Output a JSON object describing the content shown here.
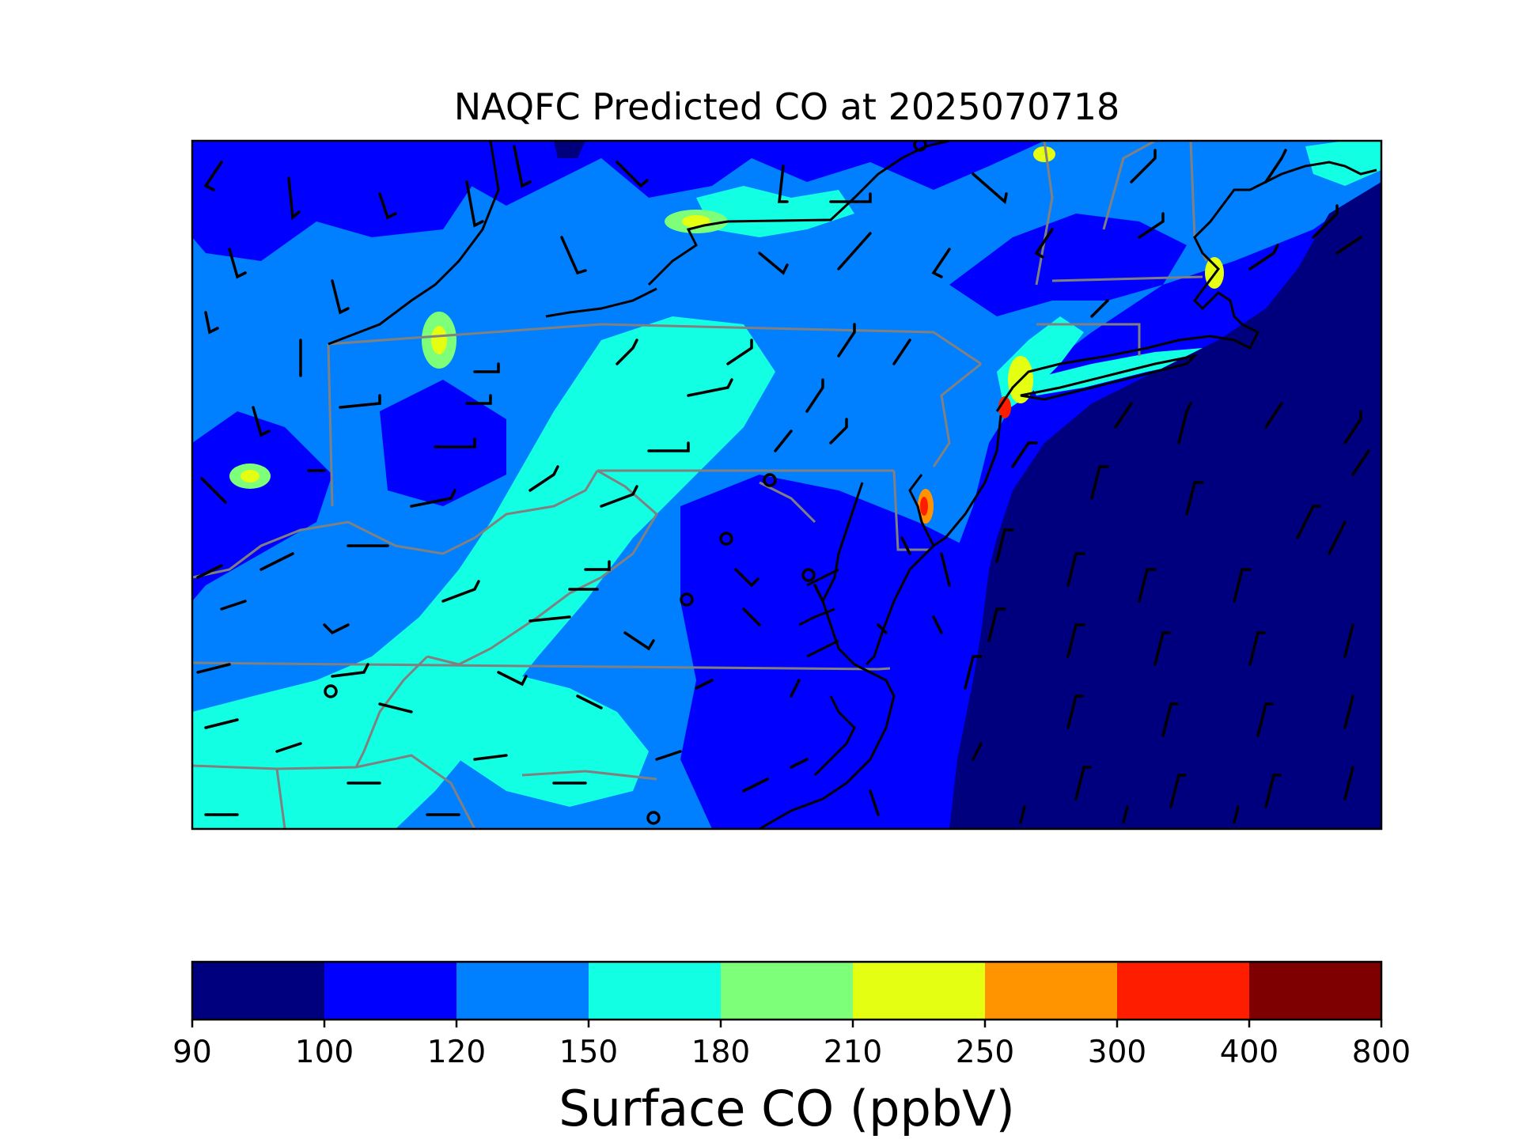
{
  "title": "NAQFC Predicted CO at 2025070718",
  "colorbar": {
    "label": "Surface CO (ppbV)",
    "boundaries": [
      90,
      100,
      120,
      150,
      180,
      210,
      250,
      300,
      400,
      800
    ],
    "tick_labels": [
      "90",
      "100",
      "120",
      "150",
      "180",
      "210",
      "250",
      "300",
      "400",
      "800"
    ],
    "colors": [
      "#00007f",
      "#0000ff",
      "#0080ff",
      "#12ffe4",
      "#7dff7a",
      "#e4ff12",
      "#ff9400",
      "#ff1d00",
      "#7f0000"
    ]
  },
  "colors": {
    "state_borders": "#808080",
    "coastlines": "#000000",
    "wind_barbs": "#000000"
  },
  "map": {
    "type": "filled contour map with wind barbs",
    "variable": "surface CO concentration",
    "region": "Mid-Atlantic and Northeast United States",
    "overlays": [
      "coastlines",
      "state borders",
      "wind barbs"
    ]
  }
}
